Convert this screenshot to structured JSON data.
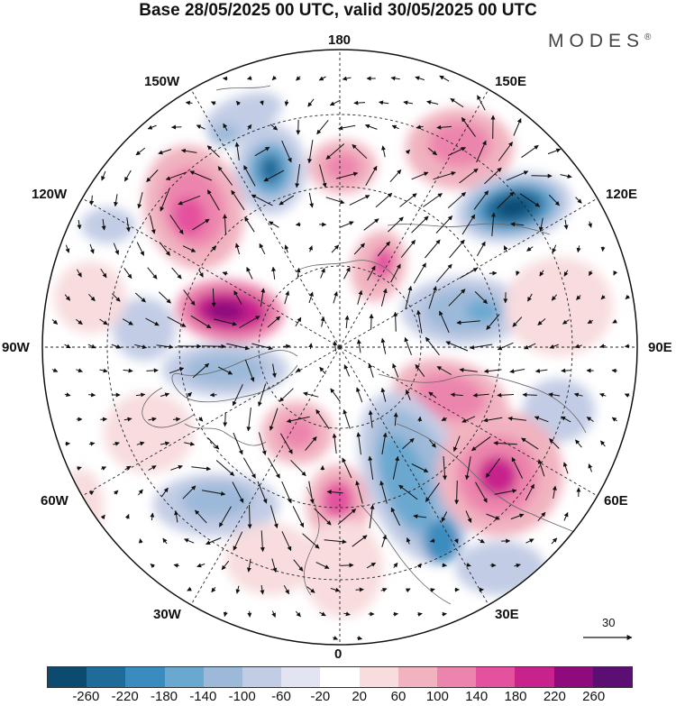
{
  "title": "Base 28/05/2025 00 UTC, valid 30/05/2025 00 UTC",
  "brand": "MODES",
  "brand_mark": "®",
  "longitude_labels": {
    "n180": "180",
    "w150": "150W",
    "e150": "150E",
    "w120": "120W",
    "e120": "120E",
    "w90": "90W",
    "e90": "90E",
    "w60": "60W",
    "e60": "60E",
    "w30": "30W",
    "e30": "30E",
    "s0": "0"
  },
  "reference_vector": "30",
  "colorbar": {
    "colors": [
      "#0d4a70",
      "#1f6b9a",
      "#3a8cbf",
      "#6aa8d0",
      "#9db9d9",
      "#c2cce5",
      "#e2e4f1",
      "#ffffff",
      "#f8dcde",
      "#f1b3c0",
      "#ec85ad",
      "#e4519f",
      "#c8228d",
      "#8e0a7d",
      "#5b0f72"
    ],
    "ticks": [
      "-260",
      "-220",
      "-180",
      "-140",
      "-100",
      "-60",
      "-20",
      "20",
      "60",
      "100",
      "140",
      "180",
      "220",
      "260"
    ]
  }
}
